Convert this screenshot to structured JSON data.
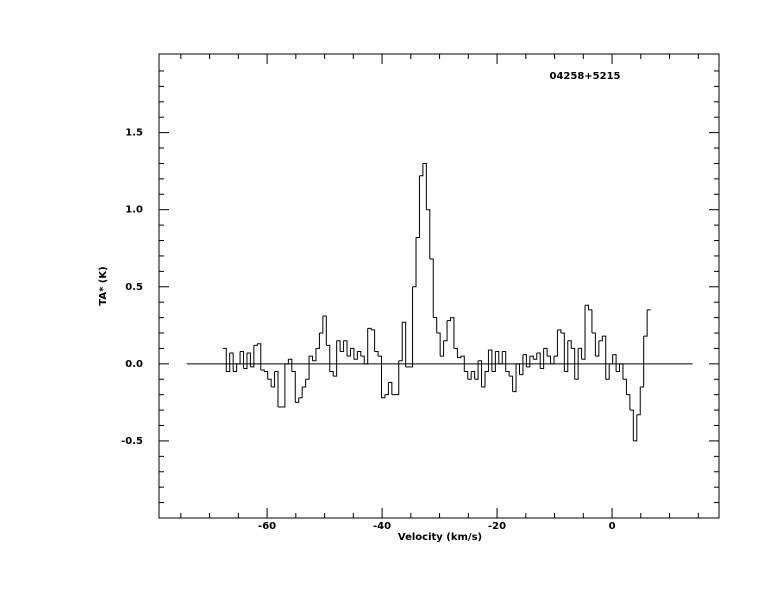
{
  "chart_data": {
    "type": "step",
    "annotation": "04258+5215",
    "xlabel": "Velocity (km/s)",
    "ylabel": "TA* (K)",
    "xlim": [
      -78.8,
      18.6
    ],
    "ylim": [
      -1.0,
      2.01
    ],
    "xticks": [
      -60,
      -40,
      -20,
      0
    ],
    "yticks": [
      -0.5,
      {
        "value": 0,
        "label": "0.0"
      },
      0.5,
      {
        "value": 1,
        "label": "1.0"
      },
      1.5
    ],
    "xminorticks": [
      -75,
      -70,
      -65,
      -55,
      -50,
      -45,
      -35,
      -30,
      -25,
      -15,
      -10,
      -5,
      5,
      10,
      15
    ],
    "yminorticks": [
      -0.9,
      -0.8,
      -0.7,
      -0.6,
      -0.4,
      -0.3,
      -0.2,
      -0.1,
      0.1,
      0.2,
      0.3,
      0.4,
      0.6,
      0.7,
      0.8,
      0.9,
      1.1,
      1.2,
      1.3,
      1.4,
      1.6,
      1.7,
      1.8,
      1.9
    ],
    "baseline": {
      "x": [
        -74,
        14
      ],
      "y": 0
    },
    "color": "#000000",
    "x": [
      -67.4,
      -66.8,
      -66.2,
      -65.6,
      -65.0,
      -64.4,
      -63.8,
      -63.2,
      -62.6,
      -62.0,
      -61.4,
      -60.8,
      -60.2,
      -59.6,
      -59.0,
      -58.4,
      -57.8,
      -57.2,
      -56.6,
      -56.0,
      -55.4,
      -54.8,
      -54.2,
      -53.6,
      -53.0,
      -52.4,
      -51.8,
      -51.2,
      -50.6,
      -50.0,
      -49.4,
      -48.8,
      -48.2,
      -47.6,
      -47.0,
      -46.4,
      -45.8,
      -45.2,
      -44.6,
      -44.0,
      -43.4,
      -42.8,
      -42.2,
      -41.6,
      -41.0,
      -40.4,
      -39.8,
      -39.2,
      -38.6,
      -38.0,
      -37.4,
      -36.8,
      -36.2,
      -35.6,
      -35.0,
      -34.4,
      -33.8,
      -33.2,
      -32.6,
      -32.0,
      -31.4,
      -30.8,
      -30.2,
      -29.6,
      -29.0,
      -28.4,
      -27.8,
      -27.2,
      -26.6,
      -26.0,
      -25.4,
      -24.8,
      -24.2,
      -23.6,
      -23.0,
      -22.4,
      -21.8,
      -21.2,
      -20.6,
      -20.0,
      -19.4,
      -18.8,
      -18.2,
      -17.6,
      -17.0,
      -16.4,
      -15.8,
      -15.2,
      -14.6,
      -14.0,
      -13.4,
      -12.8,
      -12.2,
      -11.6,
      -11.0,
      -10.4,
      -9.8,
      -9.2,
      -8.6,
      -8.0,
      -7.4,
      -6.8,
      -6.2,
      -5.6,
      -5.0,
      -4.4,
      -3.8,
      -3.2,
      -2.6,
      -2.0,
      -1.4,
      -0.8,
      -0.2,
      0.4,
      1.0,
      1.6,
      2.2,
      2.8,
      3.4,
      4.0,
      4.6,
      5.2,
      5.8,
      6.4
    ],
    "values": [
      0.1,
      -0.05,
      0.07,
      -0.05,
      0.0,
      0.08,
      -0.03,
      0.07,
      -0.02,
      0.12,
      0.13,
      -0.04,
      -0.05,
      -0.1,
      -0.15,
      -0.05,
      -0.28,
      -0.28,
      0.0,
      0.03,
      -0.05,
      -0.25,
      -0.22,
      -0.15,
      -0.1,
      0.05,
      0.02,
      0.1,
      0.2,
      0.31,
      0.12,
      -0.05,
      -0.08,
      0.15,
      0.08,
      0.15,
      0.05,
      0.1,
      0.03,
      0.08,
      0.05,
      0.0,
      0.23,
      0.22,
      0.08,
      0.05,
      -0.22,
      -0.2,
      -0.12,
      -0.2,
      -0.2,
      0.02,
      0.27,
      -0.02,
      -0.02,
      0.5,
      0.82,
      1.22,
      1.3,
      1.0,
      0.68,
      0.3,
      0.2,
      0.05,
      0.15,
      0.28,
      0.3,
      0.1,
      0.04,
      0.05,
      -0.05,
      -0.1,
      -0.05,
      -0.1,
      0.02,
      -0.15,
      -0.05,
      0.09,
      -0.05,
      0.08,
      0.0,
      0.08,
      -0.05,
      -0.08,
      -0.18,
      0.0,
      -0.07,
      0.06,
      -0.02,
      0.05,
      0.03,
      0.07,
      -0.03,
      0.1,
      0.05,
      0.0,
      0.05,
      0.22,
      0.2,
      -0.05,
      0.15,
      0.1,
      -0.1,
      0.1,
      0.03,
      0.38,
      0.35,
      0.2,
      0.05,
      0.15,
      0.18,
      -0.1,
      0.0,
      0.06,
      -0.05,
      0.0,
      -0.1,
      -0.2,
      -0.3,
      -0.5,
      -0.33,
      -0.15,
      0.18,
      0.35
    ]
  }
}
